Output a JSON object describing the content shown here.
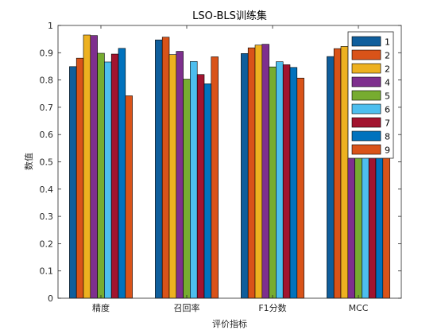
{
  "chart_data": {
    "type": "bar",
    "title": "LSO-BLS训练集",
    "xlabel": "评价指标",
    "ylabel": "数值",
    "ylim": [
      0,
      1
    ],
    "yticks": [
      0,
      0.1,
      0.2,
      0.3,
      0.4,
      0.5,
      0.6,
      0.7,
      0.8,
      0.9,
      1
    ],
    "ytick_labels": [
      "0",
      "0.1",
      "0.2",
      "0.3",
      "0.4",
      "0.5",
      "0.6",
      "0.7",
      "0.8",
      "0.9",
      "1"
    ],
    "grid": false,
    "legend_position": "top-right",
    "categories": [
      "精度",
      "召回率",
      "F1分数",
      "MCC"
    ],
    "series": [
      {
        "name": "1",
        "color": "#0F5E9C",
        "values": [
          0.849,
          0.947,
          0.897,
          0.886
        ]
      },
      {
        "name": "2",
        "color": "#D95319",
        "values": [
          0.88,
          0.957,
          0.918,
          0.915
        ]
      },
      {
        "name": "2",
        "color": "#EDB120",
        "values": [
          0.965,
          0.893,
          0.928,
          0.923
        ]
      },
      {
        "name": "4",
        "color": "#7E2F8E",
        "values": [
          0.963,
          0.905,
          0.931,
          0.86
        ]
      },
      {
        "name": "5",
        "color": "#77AC30",
        "values": [
          0.898,
          0.803,
          0.848,
          0.7
        ]
      },
      {
        "name": "6",
        "color": "#4DBEEE",
        "values": [
          0.866,
          0.868,
          0.867,
          0.72
        ]
      },
      {
        "name": "7",
        "color": "#A2142F",
        "values": [
          0.895,
          0.82,
          0.856,
          0.74
        ]
      },
      {
        "name": "8",
        "color": "#0072BD",
        "values": [
          0.916,
          0.786,
          0.846,
          0.69
        ]
      },
      {
        "name": "9",
        "color": "#D95319",
        "values": [
          0.742,
          0.885,
          0.807,
          0.761
        ]
      }
    ]
  }
}
